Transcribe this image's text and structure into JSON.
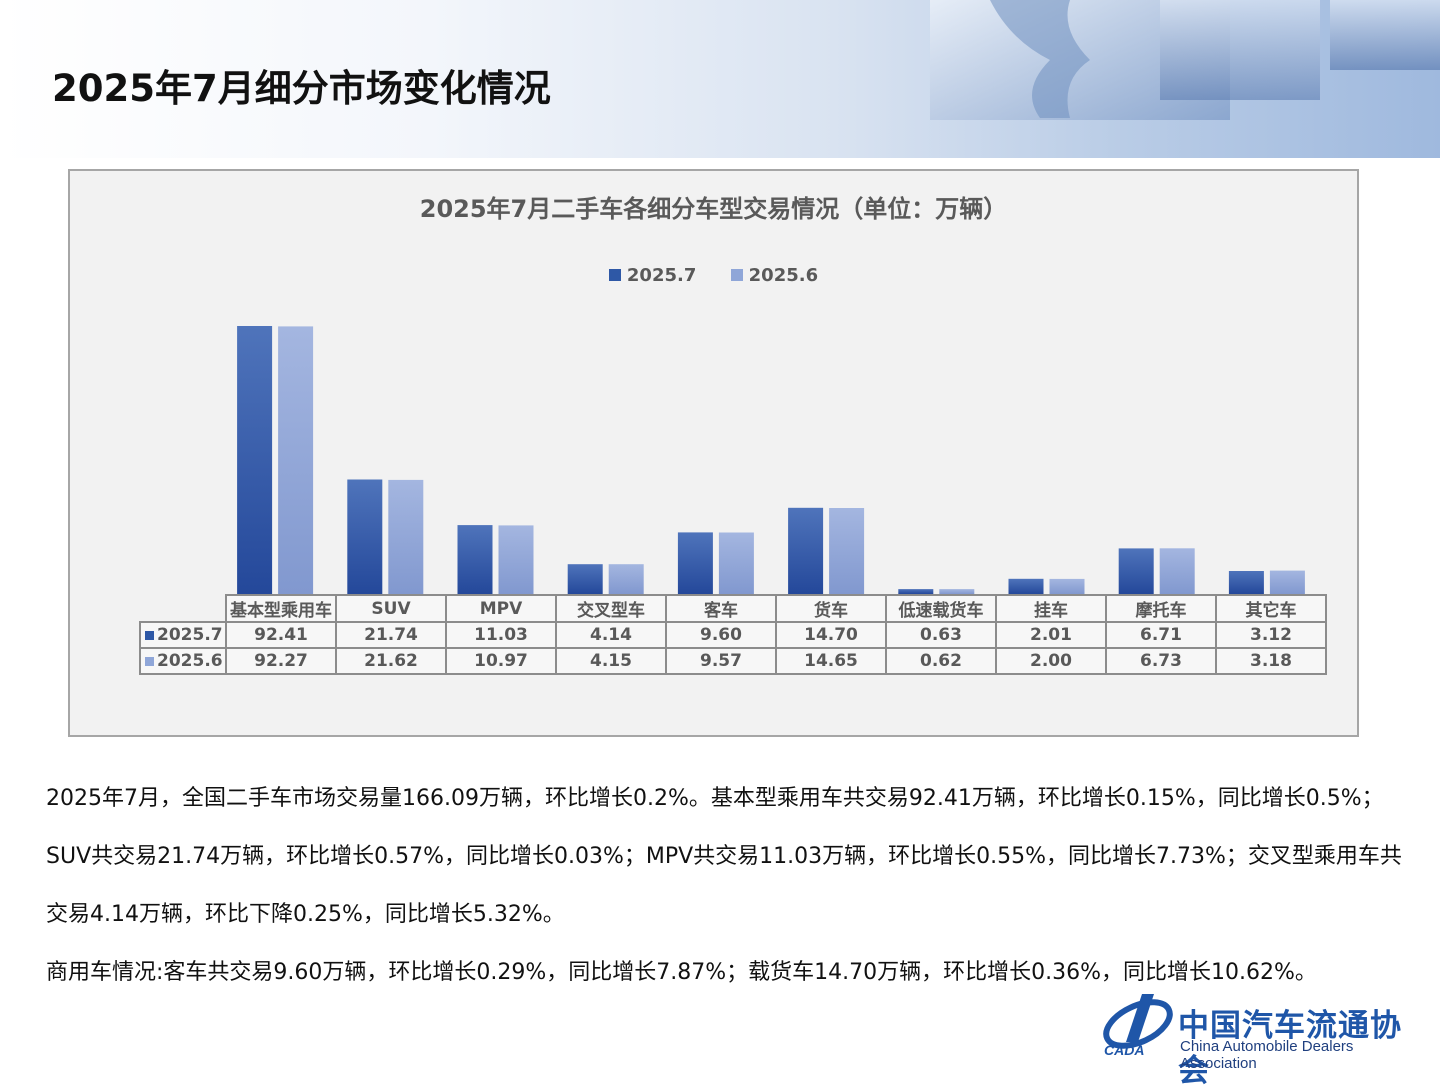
{
  "page_title": "2025年7月细分市场变化情况",
  "colors": {
    "series1": "#2e58a6",
    "series2": "#8fa6d8",
    "accent": "#1f56a8"
  },
  "chart_data": {
    "type": "bar",
    "title": "2025年7月二手车各细分车型交易情况（单位：万辆）",
    "categories": [
      "基本型乘用车",
      "SUV",
      "MPV",
      "交叉型车",
      "客车",
      "货车",
      "低速载货车",
      "挂车",
      "摩托车",
      "其它车"
    ],
    "series": [
      {
        "name": "2025.7",
        "values": [
          92.41,
          21.74,
          11.03,
          4.14,
          9.6,
          14.7,
          0.63,
          2.01,
          6.71,
          3.12
        ],
        "labels": [
          "92.41",
          "21.74",
          "11.03",
          "4.14",
          "9.60",
          "14.70",
          "0.63",
          "2.01",
          "6.71",
          "3.12"
        ]
      },
      {
        "name": "2025.6",
        "values": [
          92.27,
          21.62,
          10.97,
          4.15,
          9.57,
          14.65,
          0.62,
          2.0,
          6.73,
          3.18
        ],
        "labels": [
          "92.27",
          "21.62",
          "10.97",
          "4.15",
          "9.57",
          "14.65",
          "0.62",
          "2.00",
          "6.73",
          "3.18"
        ]
      }
    ],
    "scale": "broken (bar heights not proportional)",
    "legend": "top-center",
    "data_table": true,
    "grid": false
  },
  "summary": [
    "2025年7月，全国二手车市场交易量166.09万辆，环比增长0.2%。基本型乘用车共交易92.41万辆，环比增长0.15%，同比增长0.5%；SUV共交易21.74万辆，环比增长0.57%，同比增长0.03%；MPV共交易11.03万辆，环比增长0.55%，同比增长7.73%；交叉型乘用车共交易4.14万辆，环比下降0.25%，同比增长5.32%。",
    "商用车情况:客车共交易9.60万辆，环比增长0.29%，同比增长7.87%；载货车14.70万辆，环比增长0.36%，同比增长10.62%。"
  ],
  "logo": {
    "cn": "中国汽车流通协会",
    "en": "China Automobile Dealers Association",
    "abbr": "CADA"
  }
}
